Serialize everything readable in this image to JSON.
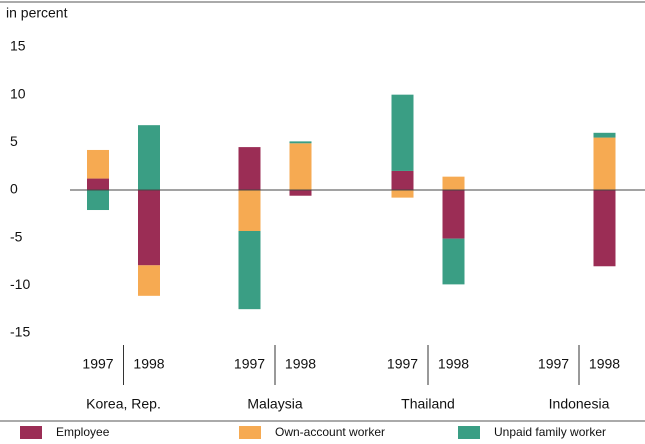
{
  "chart_data": {
    "type": "bar",
    "stacked": true,
    "ylabel": "in percent",
    "groups": [
      "Korea, Rep.",
      "Malaysia",
      "Thailand",
      "Indonesia"
    ],
    "categories": [
      "1997",
      "1998",
      "1997",
      "1998",
      "1997",
      "1998",
      "1997",
      "1998"
    ],
    "series": [
      {
        "name": "Employee",
        "color": "#9b2d55",
        "values": [
          1.2,
          -7.9,
          4.5,
          -0.6,
          2.0,
          -5.1,
          null,
          -8.0
        ]
      },
      {
        "name": "Own-account worker",
        "color": "#f6aa52",
        "values": [
          3.0,
          -3.2,
          -4.3,
          4.9,
          -0.8,
          1.4,
          null,
          5.5
        ]
      },
      {
        "name": "Unpaid family worker",
        "color": "#3a9e84",
        "values": [
          -2.1,
          6.8,
          -8.2,
          0.2,
          8.0,
          -4.8,
          null,
          0.5
        ]
      }
    ],
    "ylim": [
      -15,
      15
    ],
    "yticks": [
      15,
      10,
      5,
      0,
      -5,
      -10,
      -15
    ]
  }
}
